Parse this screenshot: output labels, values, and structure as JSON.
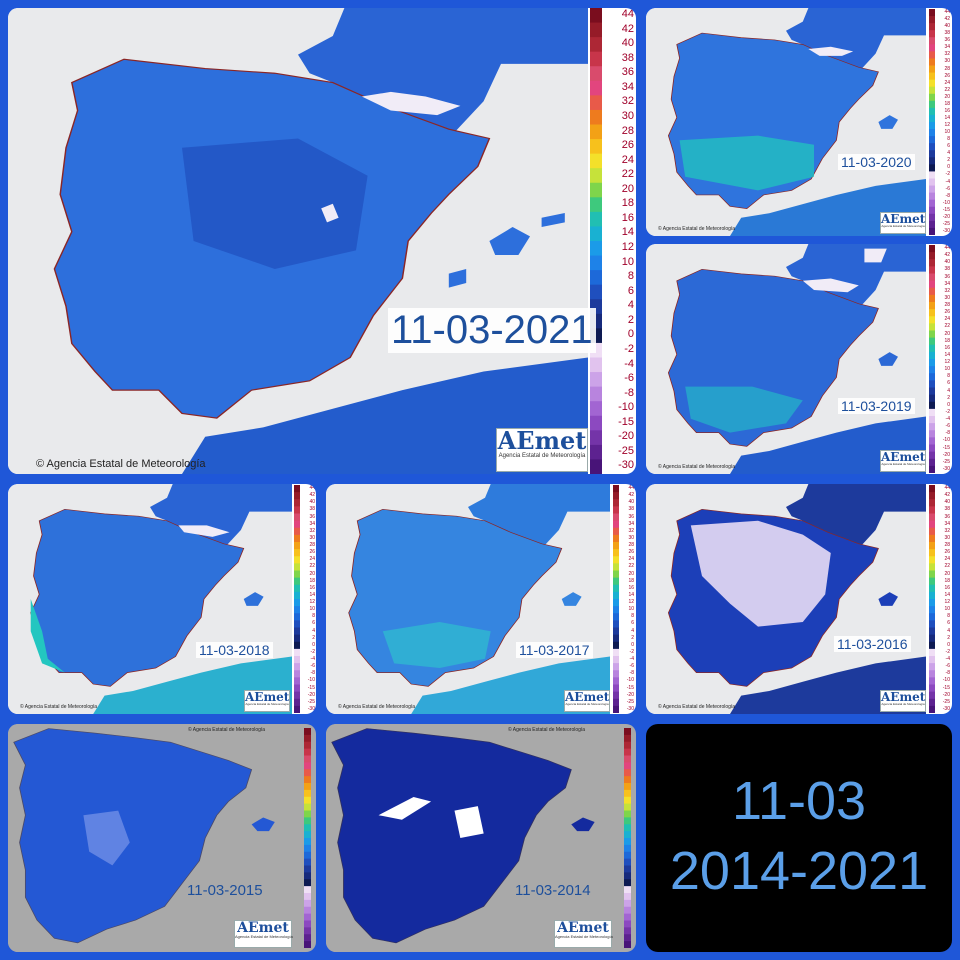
{
  "copyright": "© Agencia Estatal de Meteorología",
  "logo": {
    "name": "AEmet",
    "subtitle": "Agencia Estatal de Meteorología"
  },
  "legend_labels": [
    "44",
    "42",
    "40",
    "38",
    "36",
    "34",
    "32",
    "30",
    "28",
    "26",
    "24",
    "22",
    "20",
    "18",
    "16",
    "14",
    "12",
    "10",
    "8",
    "6",
    "4",
    "2",
    "0",
    "-2",
    "-4",
    "-6",
    "-8",
    "-10",
    "-15",
    "-20",
    "-25",
    "-30"
  ],
  "legend_colors": [
    "#7a0d1e",
    "#951b28",
    "#ad2735",
    "#c8354a",
    "#d94b6c",
    "#e2457e",
    "#e85a49",
    "#ee7b1e",
    "#f3a116",
    "#f7c11c",
    "#f4e02a",
    "#c6e23a",
    "#7fd54b",
    "#3ec97d",
    "#21bfb2",
    "#19b1d2",
    "#1b9be8",
    "#1e82e8",
    "#1d69d9",
    "#1f4fbe",
    "#1d3a9c",
    "#172a7c",
    "#0e1a52",
    "#f0dff5",
    "#e1c3ee",
    "#cca3e8",
    "#b884de",
    "#a265d2",
    "#8c49c0",
    "#7434a8",
    "#5d2290",
    "#481478"
  ],
  "colors": {
    "background": "#1f57d8",
    "title_text": "#5b9fe8",
    "date_text": "#1d4f9c",
    "sea": "#e9eaec",
    "sea_old": "#a9a9a9"
  },
  "panels": [
    {
      "date": "11-03-2021",
      "land_color": "#2d6fdc"
    },
    {
      "date": "11-03-2020",
      "land_color": "#2f74dd"
    },
    {
      "date": "11-03-2019",
      "land_color": "#2c69d6"
    },
    {
      "date": "11-03-2018",
      "land_color": "#2e71da"
    },
    {
      "date": "11-03-2017",
      "land_color": "#3585e0"
    },
    {
      "date": "11-03-2016",
      "land_color": "#1c3fb8"
    },
    {
      "date": "11-03-2015",
      "land_color": "#2458d4"
    },
    {
      "date": "11-03-2014",
      "land_color": "#142a9e"
    }
  ],
  "title": {
    "line1": "11-03",
    "line2": "2014-2021"
  }
}
